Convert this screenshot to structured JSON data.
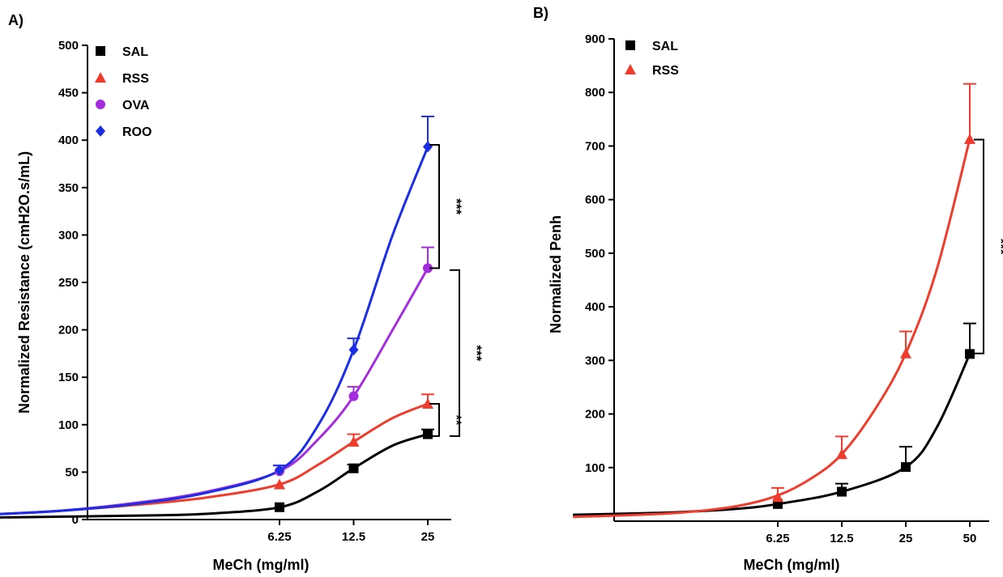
{
  "chart_data": [
    {
      "type": "line",
      "panel_label": "A)",
      "xlabel": "MeCh (mg/ml)",
      "ylabel": "Normalized Resistance (cmH2O.s/mL)",
      "x_scale": "log",
      "x_ticks": [
        6.25,
        12.5,
        25
      ],
      "x_tick_labels": [
        "6.25",
        "12.5",
        "25"
      ],
      "ylim": [
        0,
        500
      ],
      "y_ticks": [
        0,
        50,
        100,
        150,
        200,
        250,
        300,
        350,
        400,
        450,
        500
      ],
      "y_tick_labels": [
        "0",
        "50",
        "100",
        "150",
        "200",
        "250",
        "300",
        "350",
        "400",
        "450",
        "500"
      ],
      "legend_position": "top-left",
      "series": [
        {
          "name": "SAL",
          "color": "#000000",
          "marker": "square",
          "x": [
            6.25,
            12.5,
            25
          ],
          "y": [
            13,
            54,
            90
          ],
          "error": [
            0,
            4,
            5
          ],
          "curve": [
            [
              0.39,
              2
            ],
            [
              0.78,
              3
            ],
            [
              1.56,
              4
            ],
            [
              3.125,
              6
            ],
            [
              6.25,
              13
            ],
            [
              9,
              30
            ],
            [
              12.5,
              54
            ],
            [
              18,
              78
            ],
            [
              25,
              90
            ]
          ]
        },
        {
          "name": "RSS",
          "color": "#f03c2c",
          "marker": "triangle",
          "x": [
            6.25,
            12.5,
            25
          ],
          "y": [
            37,
            82,
            122
          ],
          "error": [
            0,
            8,
            10
          ],
          "curve": [
            [
              0.39,
              5
            ],
            [
              0.78,
              9
            ],
            [
              1.56,
              15
            ],
            [
              3.125,
              23
            ],
            [
              6.25,
              37
            ],
            [
              9,
              58
            ],
            [
              12.5,
              82
            ],
            [
              18,
              107
            ],
            [
              25,
              122
            ]
          ]
        },
        {
          "name": "OVA",
          "color": "#a52de0",
          "marker": "circle",
          "x": [
            6.25,
            12.5,
            25
          ],
          "y": [
            51,
            130,
            265
          ],
          "error": [
            6,
            10,
            22
          ],
          "curve": [
            [
              0.39,
              5
            ],
            [
              0.78,
              9
            ],
            [
              1.56,
              17
            ],
            [
              3.125,
              29
            ],
            [
              6.25,
              51
            ],
            [
              9,
              85
            ],
            [
              12.5,
              130
            ],
            [
              18,
              200
            ],
            [
              25,
              265
            ]
          ]
        },
        {
          "name": "ROO",
          "color": "#1a2ee6",
          "marker": "diamond",
          "x": [
            6.25,
            12.5,
            25
          ],
          "y": [
            52,
            179,
            393
          ],
          "error": [
            5,
            12,
            32
          ],
          "curve": [
            [
              0.39,
              5
            ],
            [
              0.78,
              9
            ],
            [
              1.56,
              16
            ],
            [
              3.125,
              28
            ],
            [
              6.25,
              52
            ],
            [
              9,
              100
            ],
            [
              12.5,
              179
            ],
            [
              18,
              300
            ],
            [
              25,
              393
            ]
          ]
        }
      ],
      "annotations": [
        {
          "text": "***",
          "from": 265,
          "to": 395
        },
        {
          "text": "***",
          "from": 88,
          "to": 263
        },
        {
          "text": "**",
          "from": 88,
          "to": 122
        }
      ]
    },
    {
      "type": "line",
      "panel_label": "B)",
      "xlabel": "MeCh (mg/ml)",
      "ylabel": "Normalized Penh",
      "x_scale": "log",
      "x_ticks": [
        6.25,
        12.5,
        25,
        50
      ],
      "x_tick_labels": [
        "6.25",
        "12.5",
        "25",
        "50"
      ],
      "ylim": [
        0,
        900
      ],
      "y_ticks": [
        100,
        200,
        300,
        400,
        500,
        600,
        700,
        800,
        900
      ],
      "y_tick_labels": [
        "100",
        "200",
        "300",
        "400",
        "500",
        "600",
        "700",
        "800",
        "900"
      ],
      "legend_position": "top-left",
      "series": [
        {
          "name": "SAL",
          "color": "#000000",
          "marker": "square",
          "x": [
            6.25,
            12.5,
            25,
            50
          ],
          "y": [
            32,
            55,
            101,
            312
          ],
          "error": [
            0,
            15,
            38,
            57
          ],
          "curve": [
            [
              0.68,
              12
            ],
            [
              1.2,
              14
            ],
            [
              2.2,
              17
            ],
            [
              4,
              23
            ],
            [
              6.25,
              32
            ],
            [
              12.5,
              55
            ],
            [
              25,
              101
            ],
            [
              35,
              175
            ],
            [
              50,
              312
            ]
          ]
        },
        {
          "name": "RSS",
          "color": "#f03c2c",
          "marker": "triangle",
          "x": [
            6.25,
            12.5,
            25,
            50
          ],
          "y": [
            45,
            125,
            313,
            713
          ],
          "error": [
            17,
            33,
            41,
            103
          ],
          "curve": [
            [
              0.68,
              8
            ],
            [
              1.2,
              11
            ],
            [
              2.2,
              16
            ],
            [
              4,
              28
            ],
            [
              6.25,
              48
            ],
            [
              9,
              80
            ],
            [
              12.5,
              125
            ],
            [
              18,
              210
            ],
            [
              25,
              313
            ],
            [
              35,
              470
            ],
            [
              50,
              713
            ]
          ]
        }
      ],
      "annotations": [
        {
          "text": "***",
          "from": 313,
          "to": 712
        }
      ]
    }
  ]
}
